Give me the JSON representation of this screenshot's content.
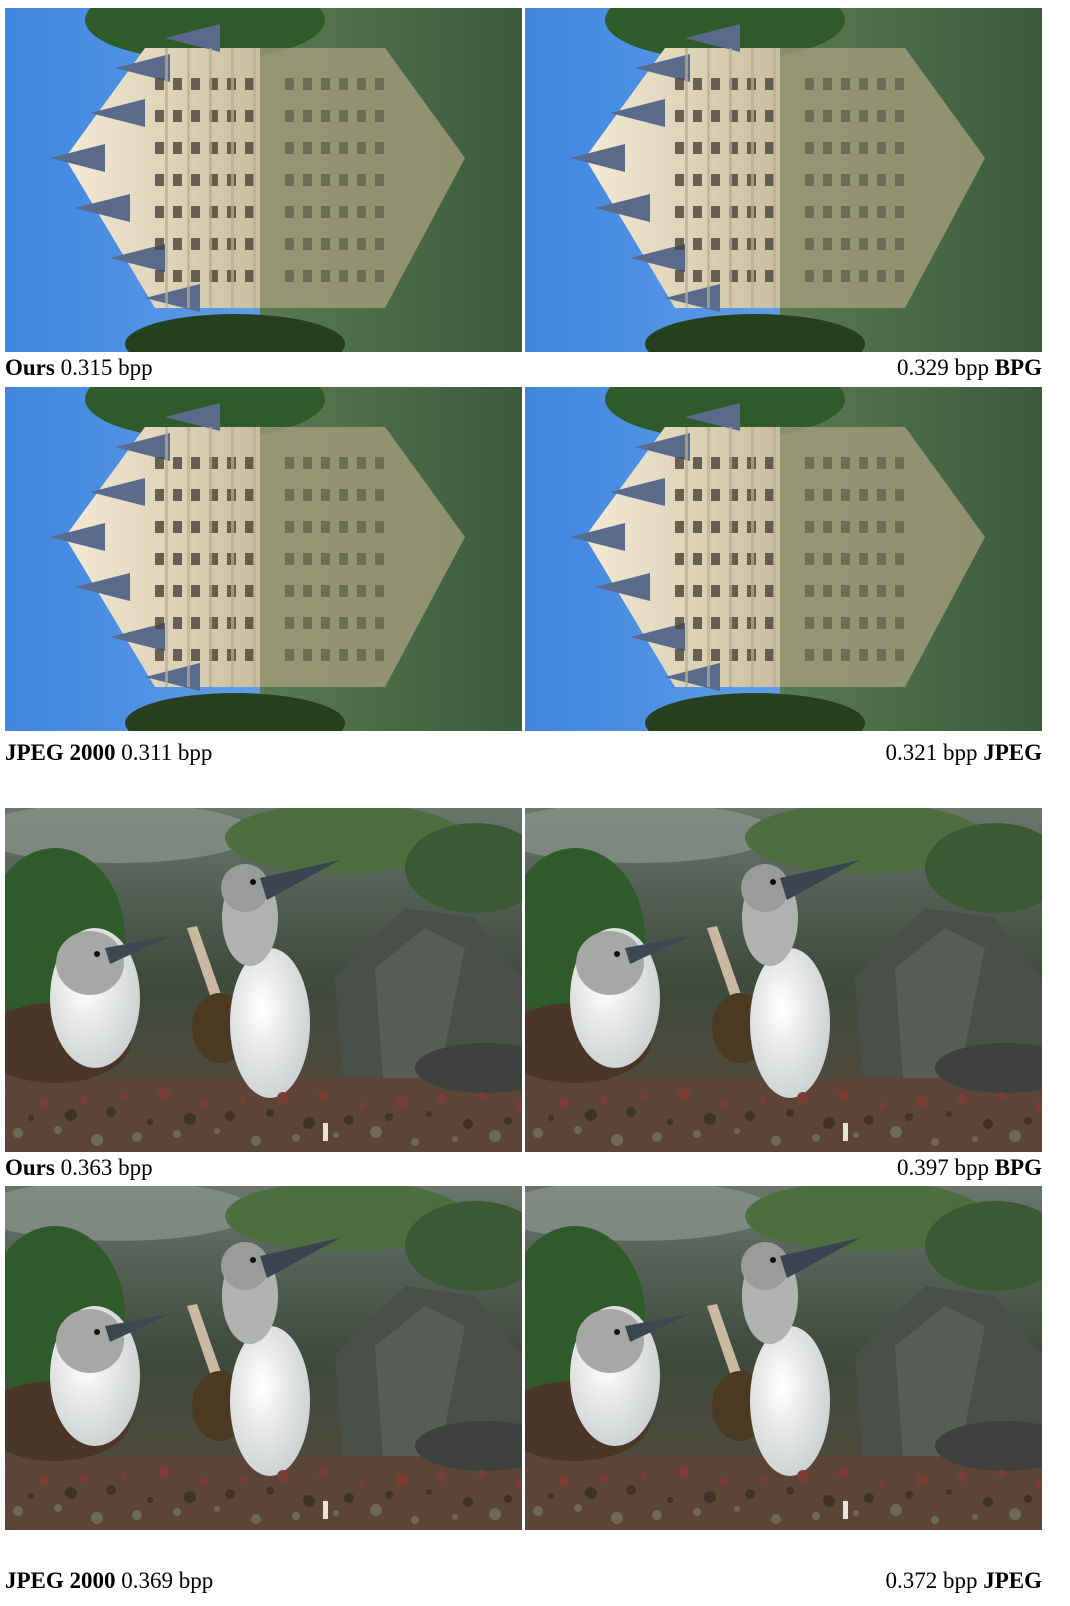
{
  "figures": [
    {
      "scene": "castle",
      "panels": [
        {
          "method": "Ours",
          "bpp": "0.315 bpp",
          "method_first": true
        },
        {
          "method": "BPG",
          "bpp": "0.329 bpp",
          "method_first": false
        },
        {
          "method": "JPEG 2000",
          "bpp": "0.311 bpp",
          "method_first": true
        },
        {
          "method": "JPEG",
          "bpp": "0.321 bpp",
          "method_first": false
        }
      ]
    },
    {
      "scene": "birds",
      "panels": [
        {
          "method": "Ours",
          "bpp": "0.363 bpp",
          "method_first": true
        },
        {
          "method": "BPG",
          "bpp": "0.397 bpp",
          "method_first": false
        },
        {
          "method": "JPEG 2000",
          "bpp": "0.369 bpp",
          "method_first": true
        },
        {
          "method": "JPEG",
          "bpp": "0.372 bpp",
          "method_first": false
        }
      ]
    }
  ],
  "colors": {
    "sky": "#3f86e0",
    "water": "#3a5a3c",
    "building": "#e6dcc4",
    "roof": "#5a6a8a",
    "foliage": "#2f5a2a",
    "rock": "#4a4f4a",
    "ground": "#5a4a3e",
    "bird_white": "#eef0f0"
  }
}
